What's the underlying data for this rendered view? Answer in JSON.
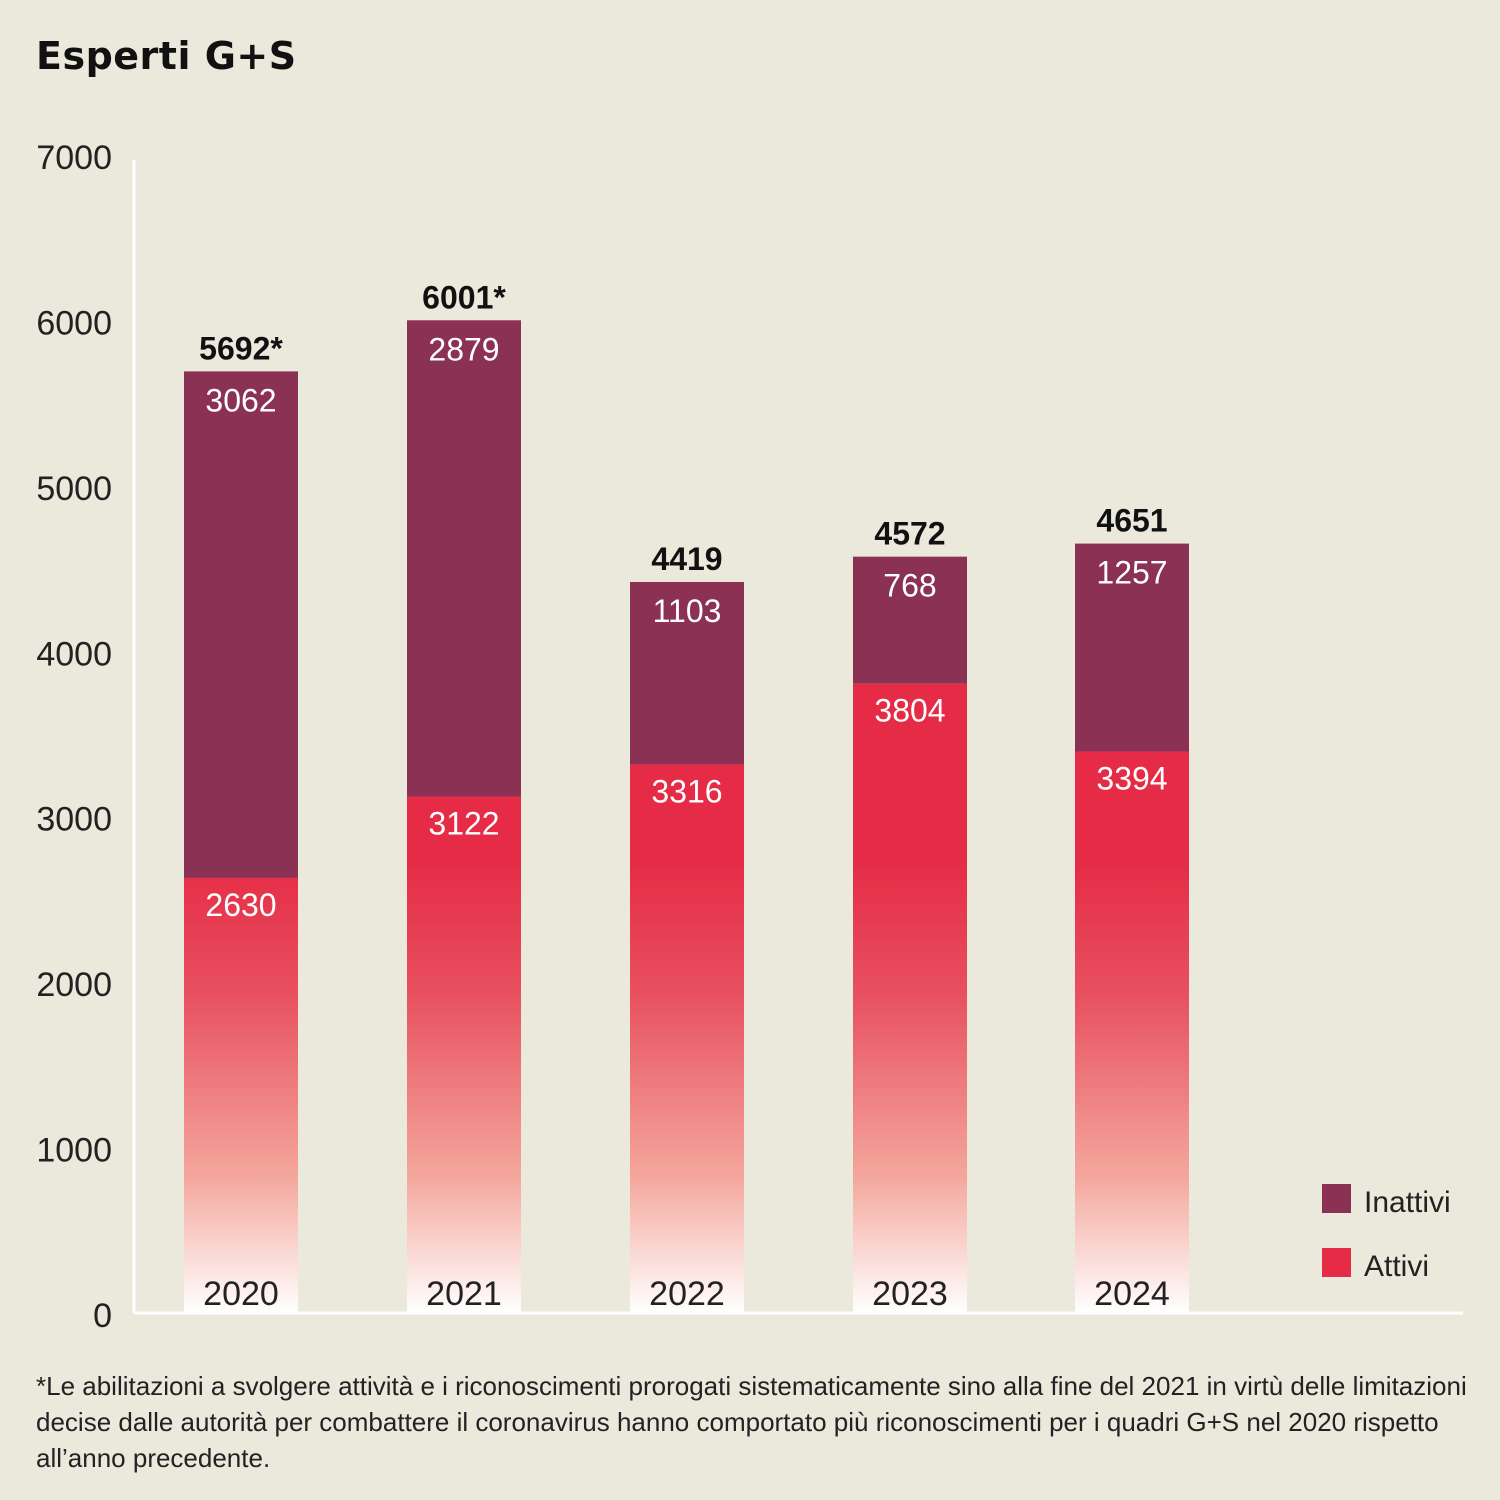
{
  "chart_data": {
    "type": "bar",
    "stacked": true,
    "title": "Esperti G+S",
    "xlabel": "",
    "ylabel": "",
    "ylim": [
      0,
      7000
    ],
    "yticks": [
      0,
      1000,
      2000,
      3000,
      4000,
      5000,
      6000,
      7000
    ],
    "grid": false,
    "legend_position": "bottom-right",
    "categories": [
      "2020",
      "2021",
      "2022",
      "2023",
      "2024"
    ],
    "series": [
      {
        "name": "Attivi",
        "values": [
          2630,
          3122,
          3316,
          3804,
          3394
        ],
        "color": "#E52B45"
      },
      {
        "name": "Inattivi",
        "values": [
          3062,
          2879,
          1103,
          768,
          1257
        ],
        "color": "#8B3154"
      }
    ],
    "totals": [
      "5692*",
      "6001*",
      "4419",
      "4572",
      "4651"
    ],
    "legend": [
      "Inattivi",
      "Attivi"
    ]
  },
  "footnote": "*Le abilitazioni a svolgere attività e i riconoscimenti prorogati sistematicamente sino alla fine del 2021 in virtù delle limitazioni decise dalle autorità per combattere il coronavirus hanno comportato più riconoscimenti per i quadri G+S nel 2020 rispetto all’anno precedente.",
  "colors": {
    "background": "#EBE8DC",
    "axis": "#FFFFFF"
  }
}
